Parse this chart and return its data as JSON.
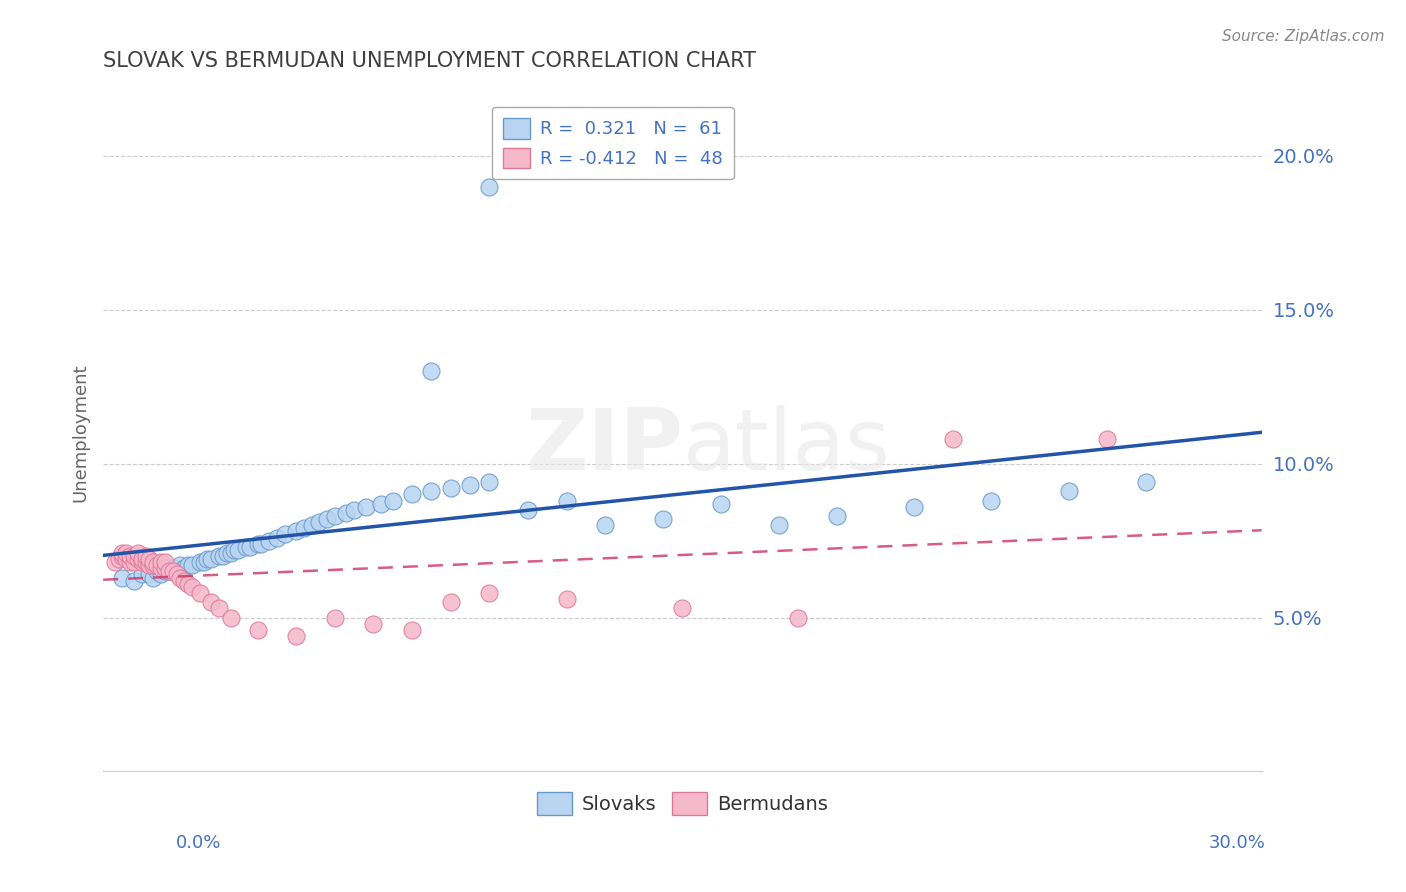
{
  "title": "SLOVAK VS BERMUDAN UNEMPLOYMENT CORRELATION CHART",
  "source_text": "Source: ZipAtlas.com",
  "ylabel": "Unemployment",
  "yticks": [
    0.05,
    0.1,
    0.15,
    0.2
  ],
  "ytick_labels": [
    "5.0%",
    "10.0%",
    "15.0%",
    "20.0%"
  ],
  "xlim": [
    0.0,
    0.3
  ],
  "ylim": [
    0.0,
    0.22
  ],
  "legend_line1": "R =  0.321   N =  61",
  "legend_line2": "R = -0.412   N =  48",
  "legend_footer_slovaks": "Slovaks",
  "legend_footer_bermudans": "Bermudans",
  "blue_color": "#b8d4f0",
  "pink_color": "#f5b8cb",
  "blue_edge_color": "#6699cc",
  "pink_edge_color": "#dd7799",
  "blue_line_color": "#2255aa",
  "pink_line_color": "#cc3366",
  "title_color": "#404040",
  "axis_label_color": "#4472c4",
  "grid_color": "#cccccc",
  "slovak_x": [
    0.005,
    0.008,
    0.01,
    0.012,
    0.013,
    0.014,
    0.015,
    0.016,
    0.017,
    0.018,
    0.019,
    0.02,
    0.021,
    0.022,
    0.023,
    0.025,
    0.026,
    0.027,
    0.028,
    0.03,
    0.031,
    0.032,
    0.033,
    0.034,
    0.035,
    0.037,
    0.038,
    0.04,
    0.041,
    0.043,
    0.045,
    0.047,
    0.05,
    0.052,
    0.054,
    0.056,
    0.058,
    0.06,
    0.063,
    0.065,
    0.068,
    0.072,
    0.075,
    0.08,
    0.085,
    0.09,
    0.095,
    0.1,
    0.11,
    0.12,
    0.13,
    0.145,
    0.16,
    0.175,
    0.19,
    0.21,
    0.23,
    0.25,
    0.27,
    0.1,
    0.085
  ],
  "slovak_y": [
    0.063,
    0.062,
    0.064,
    0.064,
    0.063,
    0.065,
    0.064,
    0.065,
    0.065,
    0.066,
    0.065,
    0.067,
    0.066,
    0.067,
    0.067,
    0.068,
    0.068,
    0.069,
    0.069,
    0.07,
    0.07,
    0.071,
    0.071,
    0.072,
    0.072,
    0.073,
    0.073,
    0.074,
    0.074,
    0.075,
    0.076,
    0.077,
    0.078,
    0.079,
    0.08,
    0.081,
    0.082,
    0.083,
    0.084,
    0.085,
    0.086,
    0.087,
    0.088,
    0.09,
    0.091,
    0.092,
    0.093,
    0.094,
    0.085,
    0.088,
    0.08,
    0.082,
    0.087,
    0.08,
    0.083,
    0.086,
    0.088,
    0.091,
    0.094,
    0.19,
    0.13
  ],
  "bermudan_x": [
    0.003,
    0.004,
    0.005,
    0.005,
    0.006,
    0.006,
    0.007,
    0.007,
    0.008,
    0.008,
    0.009,
    0.009,
    0.01,
    0.01,
    0.011,
    0.011,
    0.012,
    0.012,
    0.013,
    0.013,
    0.014,
    0.015,
    0.015,
    0.016,
    0.016,
    0.017,
    0.018,
    0.019,
    0.02,
    0.021,
    0.022,
    0.023,
    0.025,
    0.028,
    0.03,
    0.033,
    0.04,
    0.05,
    0.06,
    0.07,
    0.08,
    0.09,
    0.1,
    0.12,
    0.15,
    0.18,
    0.22,
    0.26
  ],
  "bermudan_y": [
    0.068,
    0.069,
    0.07,
    0.071,
    0.069,
    0.071,
    0.068,
    0.07,
    0.068,
    0.07,
    0.069,
    0.071,
    0.068,
    0.069,
    0.068,
    0.07,
    0.067,
    0.069,
    0.067,
    0.068,
    0.067,
    0.066,
    0.068,
    0.066,
    0.068,
    0.065,
    0.065,
    0.064,
    0.063,
    0.062,
    0.061,
    0.06,
    0.058,
    0.055,
    0.053,
    0.05,
    0.046,
    0.044,
    0.05,
    0.048,
    0.046,
    0.055,
    0.058,
    0.056,
    0.053,
    0.05,
    0.108,
    0.108
  ]
}
